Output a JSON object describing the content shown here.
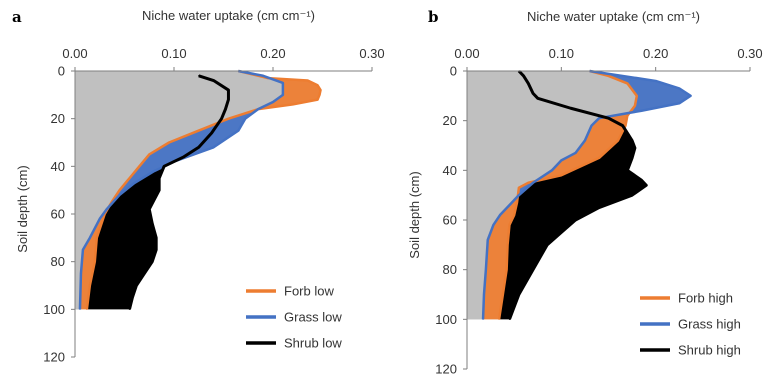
{
  "chart_data": [
    {
      "panel_label": "a",
      "type": "area",
      "title": "",
      "xlabel": "Niche water uptake (cm cm⁻¹)",
      "ylabel": "Soil depth (cm)",
      "x_axis_position": "top",
      "y_inverted": true,
      "xlim": [
        0,
        0.3
      ],
      "ylim": [
        0,
        120
      ],
      "x_ticks": [
        "0.00",
        "0.10",
        "0.20",
        "0.30"
      ],
      "y_ticks": [
        "0",
        "20",
        "40",
        "60",
        "80",
        "100",
        "120"
      ],
      "legend_position": "bottom-right",
      "grid": false,
      "series": [
        {
          "name": "Forb low",
          "color": "#ED7D31",
          "points": [
            [
              0.165,
              0
            ],
            [
              0.195,
              3
            ],
            [
              0.235,
              4
            ],
            [
              0.245,
              6
            ],
            [
              0.248,
              8
            ],
            [
              0.247,
              10
            ],
            [
              0.245,
              12
            ],
            [
              0.22,
              14
            ],
            [
              0.185,
              16
            ],
            [
              0.155,
              20
            ],
            [
              0.125,
              25
            ],
            [
              0.095,
              30
            ],
            [
              0.075,
              35
            ],
            [
              0.065,
              40
            ],
            [
              0.055,
              45
            ],
            [
              0.045,
              50
            ],
            [
              0.037,
              55
            ],
            [
              0.03,
              60
            ],
            [
              0.022,
              70
            ],
            [
              0.02,
              80
            ],
            [
              0.015,
              90
            ],
            [
              0.012,
              100
            ]
          ]
        },
        {
          "name": "Grass low",
          "color": "#4472C4",
          "points": [
            [
              0.165,
              0
            ],
            [
              0.19,
              2
            ],
            [
              0.21,
              5
            ],
            [
              0.21,
              10
            ],
            [
              0.2,
              13
            ],
            [
              0.185,
              16
            ],
            [
              0.172,
              20
            ],
            [
              0.165,
              25
            ],
            [
              0.14,
              32
            ],
            [
              0.1,
              38
            ],
            [
              0.08,
              42
            ],
            [
              0.06,
              47
            ],
            [
              0.045,
              52
            ],
            [
              0.032,
              58
            ],
            [
              0.025,
              62
            ],
            [
              0.015,
              70
            ],
            [
              0.008,
              75
            ],
            [
              0.006,
              85
            ],
            [
              0.005,
              100
            ]
          ]
        },
        {
          "name": "Shrub low",
          "color": "#000000",
          "points": [
            [
              0.125,
              2
            ],
            [
              0.14,
              4
            ],
            [
              0.155,
              8
            ],
            [
              0.155,
              12
            ],
            [
              0.152,
              16
            ],
            [
              0.148,
              20
            ],
            [
              0.138,
              26
            ],
            [
              0.125,
              32
            ],
            [
              0.11,
              36
            ],
            [
              0.09,
              40
            ],
            [
              0.085,
              45
            ],
            [
              0.085,
              50
            ],
            [
              0.075,
              58
            ],
            [
              0.078,
              64
            ],
            [
              0.082,
              70
            ],
            [
              0.082,
              75
            ],
            [
              0.078,
              80
            ],
            [
              0.07,
              85
            ],
            [
              0.062,
              90
            ],
            [
              0.058,
              95
            ],
            [
              0.055,
              100
            ]
          ]
        }
      ]
    },
    {
      "panel_label": "b",
      "type": "area",
      "title": "",
      "xlabel": "Niche water uptake (cm cm⁻¹)",
      "ylabel": "Soil depth (cm)",
      "x_axis_position": "top",
      "y_inverted": true,
      "xlim": [
        0,
        0.3
      ],
      "ylim": [
        0,
        120
      ],
      "x_ticks": [
        "0.00",
        "0.10",
        "0.20",
        "0.30"
      ],
      "y_ticks": [
        "0",
        "20",
        "40",
        "60",
        "80",
        "100",
        "120"
      ],
      "legend_position": "bottom-right",
      "grid": false,
      "series": [
        {
          "name": "Forb high",
          "color": "#ED7D31",
          "points": [
            [
              0.13,
              0
            ],
            [
              0.15,
              2
            ],
            [
              0.17,
              5
            ],
            [
              0.18,
              10
            ],
            [
              0.178,
              14
            ],
            [
              0.17,
              18
            ],
            [
              0.168,
              22
            ],
            [
              0.16,
              28
            ],
            [
              0.14,
              35
            ],
            [
              0.1,
              42
            ],
            [
              0.065,
              45
            ],
            [
              0.055,
              47
            ],
            [
              0.053,
              53
            ],
            [
              0.05,
              58
            ],
            [
              0.045,
              62
            ],
            [
              0.043,
              70
            ],
            [
              0.042,
              80
            ],
            [
              0.038,
              90
            ],
            [
              0.034,
              100
            ]
          ]
        },
        {
          "name": "Grass high",
          "color": "#4472C4",
          "points": [
            [
              0.13,
              0
            ],
            [
              0.165,
              2
            ],
            [
              0.2,
              4
            ],
            [
              0.225,
              7
            ],
            [
              0.237,
              10
            ],
            [
              0.225,
              13
            ],
            [
              0.185,
              16
            ],
            [
              0.14,
              19
            ],
            [
              0.132,
              22
            ],
            [
              0.125,
              28
            ],
            [
              0.115,
              33
            ],
            [
              0.1,
              36
            ],
            [
              0.09,
              40
            ],
            [
              0.07,
              45
            ],
            [
              0.055,
              50
            ],
            [
              0.045,
              54
            ],
            [
              0.035,
              58
            ],
            [
              0.028,
              62
            ],
            [
              0.022,
              68
            ],
            [
              0.02,
              80
            ],
            [
              0.018,
              90
            ],
            [
              0.017,
              100
            ]
          ]
        },
        {
          "name": "Shrub high",
          "color": "#000000",
          "points": [
            [
              0.055,
              0
            ],
            [
              0.06,
              2
            ],
            [
              0.065,
              5
            ],
            [
              0.07,
              9
            ],
            [
              0.075,
              11
            ],
            [
              0.11,
              15
            ],
            [
              0.15,
              19
            ],
            [
              0.165,
              22
            ],
            [
              0.17,
              25
            ],
            [
              0.175,
              28
            ],
            [
              0.178,
              31
            ],
            [
              0.175,
              35
            ],
            [
              0.17,
              40
            ],
            [
              0.185,
              44
            ],
            [
              0.19,
              46
            ],
            [
              0.175,
              50
            ],
            [
              0.14,
              55
            ],
            [
              0.115,
              60
            ],
            [
              0.1,
              65
            ],
            [
              0.085,
              70
            ],
            [
              0.07,
              80
            ],
            [
              0.055,
              90
            ],
            [
              0.045,
              100
            ]
          ]
        }
      ]
    }
  ]
}
